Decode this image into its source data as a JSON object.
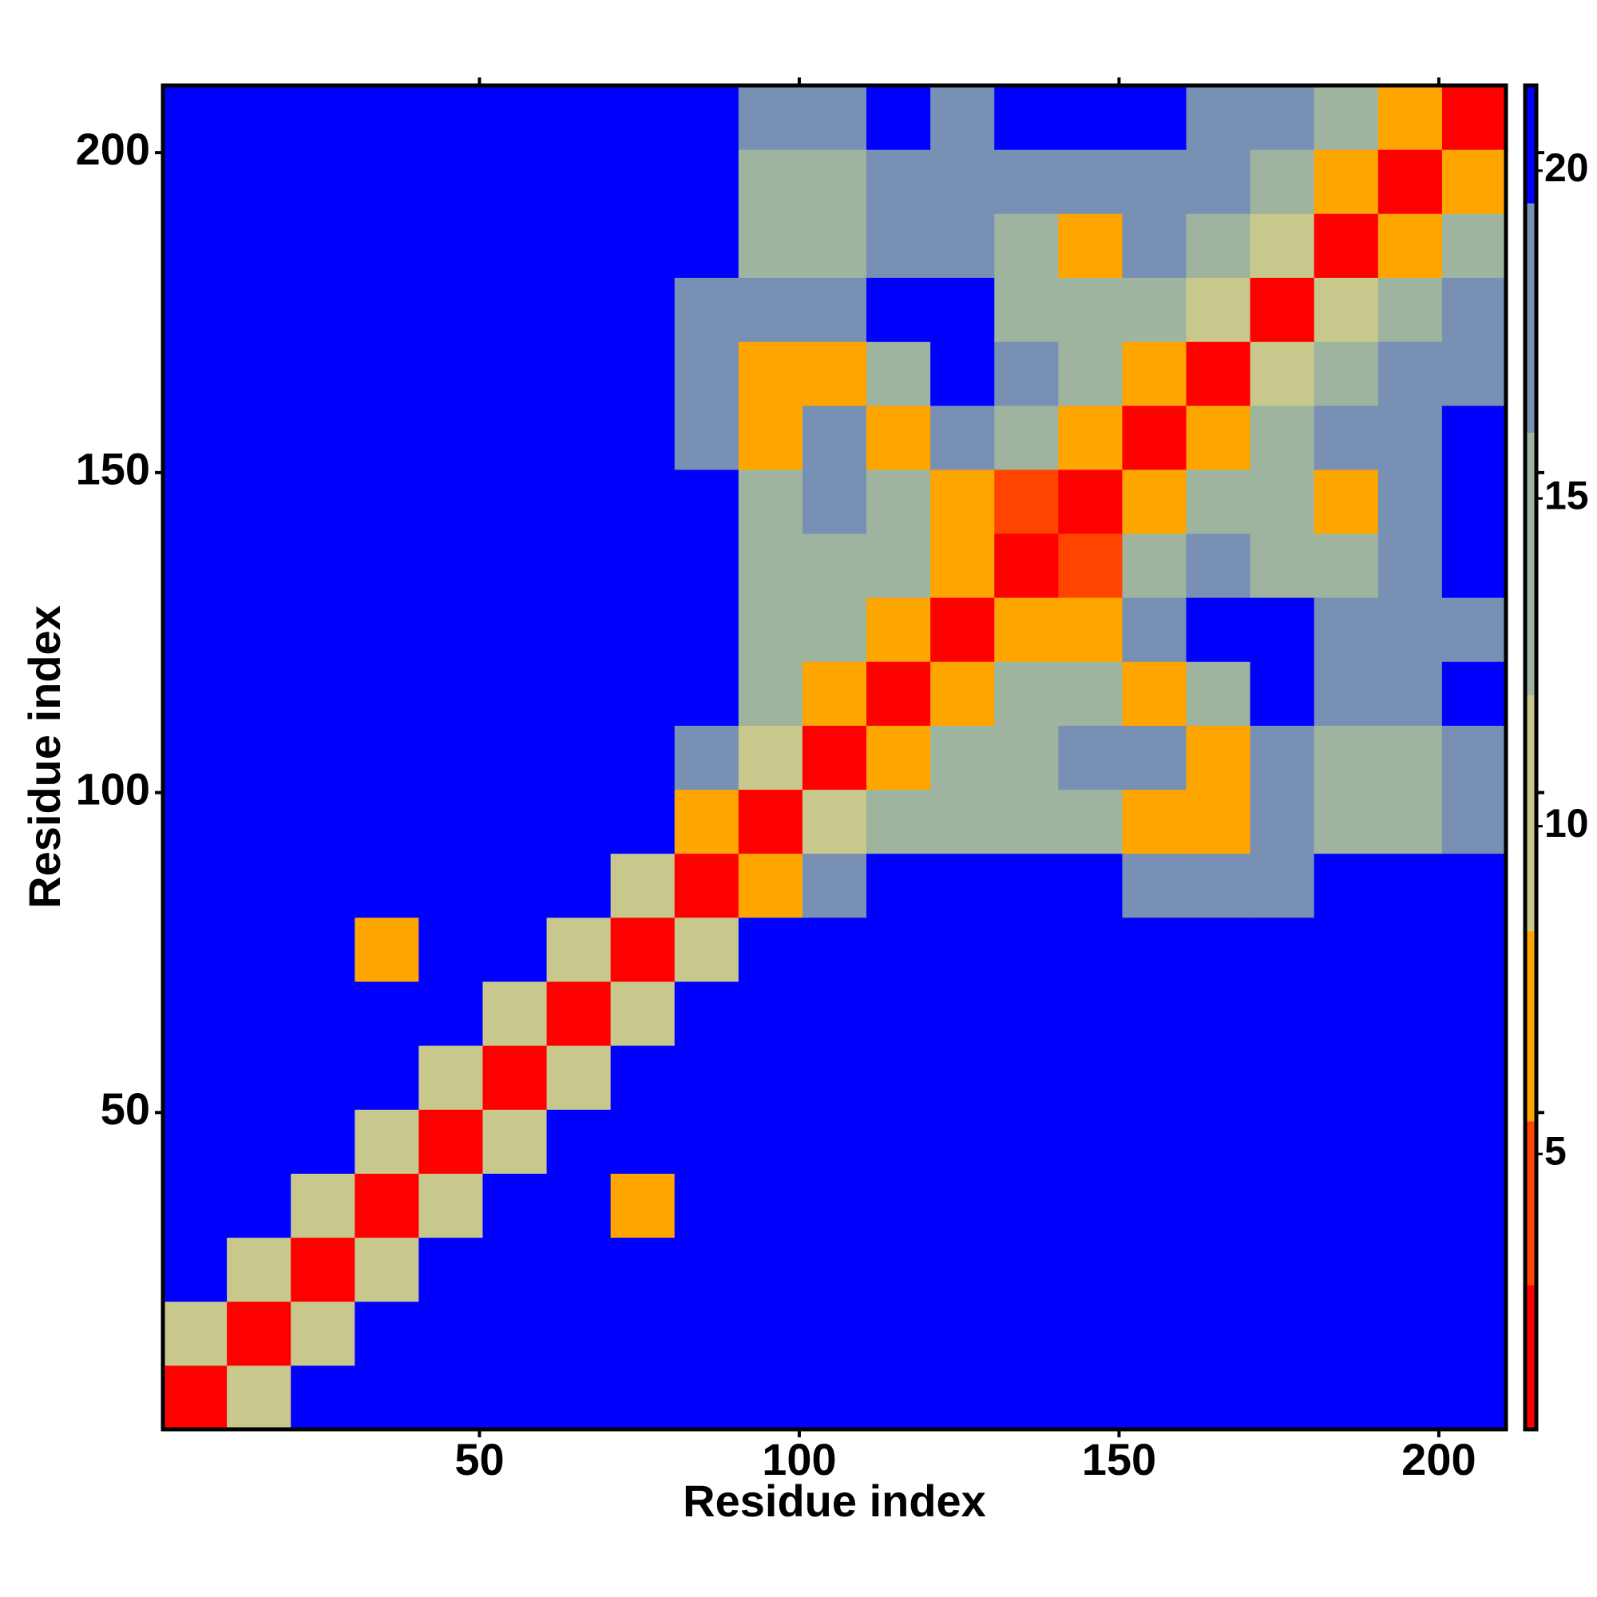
{
  "chart_data": {
    "type": "heatmap",
    "x_label": "Residue index",
    "y_label": "Residue index",
    "x": [
      5.5,
      15.5,
      25.5,
      35.5,
      45.5,
      55.5,
      65.5,
      75.5,
      85.5,
      95.5,
      105.5,
      115.5,
      125.5,
      135.5,
      145.5,
      155.5,
      165.5,
      175.5,
      185.5,
      195.5,
      205.5
    ],
    "y": [
      5.5,
      15.5,
      25.5,
      35.5,
      45.5,
      55.5,
      65.5,
      75.5,
      85.5,
      95.5,
      105.5,
      115.5,
      125.5,
      135.5,
      145.5,
      155.5,
      165.5,
      175.5,
      185.5,
      195.5,
      205.5
    ],
    "xlim": [
      0.5,
      210.5
    ],
    "ylim": [
      0.5,
      210.5
    ],
    "xticks": [
      50,
      100,
      150,
      200
    ],
    "yticks": [
      50,
      100,
      150,
      200
    ],
    "values": [
      [
        2.5,
        11,
        21,
        21,
        21,
        21,
        21,
        21,
        21,
        21,
        21,
        21,
        21,
        21,
        21,
        21,
        21,
        21,
        21,
        21,
        21
      ],
      [
        11,
        2.5,
        11,
        21,
        21,
        21,
        21,
        21,
        21,
        21,
        21,
        21,
        21,
        21,
        21,
        21,
        21,
        21,
        21,
        21,
        21
      ],
      [
        21,
        11,
        2.5,
        11,
        21,
        21,
        21,
        21,
        21,
        21,
        21,
        21,
        21,
        21,
        21,
        21,
        21,
        21,
        21,
        21,
        21
      ],
      [
        21,
        21,
        11,
        2.5,
        10,
        21,
        21,
        6,
        21,
        21,
        21,
        21,
        21,
        21,
        21,
        21,
        21,
        21,
        21,
        21,
        21
      ],
      [
        21,
        21,
        21,
        10,
        2.5,
        10,
        21,
        21,
        21,
        21,
        21,
        21,
        21,
        21,
        21,
        21,
        21,
        21,
        21,
        21,
        21
      ],
      [
        21,
        21,
        21,
        21,
        10,
        2.5,
        10,
        21,
        21,
        21,
        21,
        21,
        21,
        21,
        21,
        21,
        21,
        21,
        21,
        21,
        21
      ],
      [
        21,
        21,
        21,
        21,
        21,
        10,
        2.5,
        11,
        21,
        21,
        21,
        21,
        21,
        21,
        21,
        21,
        21,
        21,
        21,
        21,
        21
      ],
      [
        21,
        21,
        21,
        6,
        21,
        21,
        11,
        2.5,
        11,
        21,
        21,
        21,
        21,
        21,
        21,
        21,
        21,
        21,
        21,
        21,
        21
      ],
      [
        21,
        21,
        21,
        21,
        21,
        21,
        21,
        11,
        2.5,
        8,
        16,
        21,
        21,
        21,
        21,
        16,
        16,
        16,
        21,
        21,
        21
      ],
      [
        21,
        21,
        21,
        21,
        21,
        21,
        21,
        21,
        8,
        2.5,
        10,
        15,
        15,
        15,
        15,
        8,
        7,
        16,
        15,
        15,
        16
      ],
      [
        21,
        21,
        21,
        21,
        21,
        21,
        21,
        21,
        16,
        10,
        2.5,
        8,
        15,
        15,
        16,
        16,
        7,
        16,
        15,
        15,
        16
      ],
      [
        21,
        21,
        21,
        21,
        21,
        21,
        21,
        21,
        21,
        15,
        8,
        2.5,
        8,
        15,
        15,
        8,
        15,
        21,
        16,
        16,
        21
      ],
      [
        21,
        21,
        21,
        21,
        21,
        21,
        21,
        21,
        21,
        15,
        15,
        8,
        2.5,
        7,
        8,
        16,
        21,
        21,
        17,
        17,
        17
      ],
      [
        21,
        21,
        21,
        21,
        21,
        21,
        21,
        21,
        21,
        15,
        15,
        15,
        7,
        2.5,
        5,
        15,
        16,
        15,
        15,
        16,
        21
      ],
      [
        21,
        21,
        21,
        21,
        21,
        21,
        21,
        21,
        21,
        15,
        16,
        15,
        8,
        5,
        2.5,
        8,
        15,
        15,
        8,
        16,
        21
      ],
      [
        21,
        21,
        21,
        21,
        21,
        21,
        21,
        21,
        16,
        8,
        16,
        8,
        16,
        15,
        8,
        2.5,
        6,
        15,
        16,
        16,
        21
      ],
      [
        21,
        21,
        21,
        21,
        21,
        21,
        21,
        21,
        16,
        7,
        7,
        15,
        21,
        16,
        15,
        6,
        2.5,
        9,
        15,
        16,
        16
      ],
      [
        21,
        21,
        21,
        21,
        21,
        21,
        21,
        21,
        16,
        16,
        16,
        21,
        21,
        15,
        15,
        15,
        9,
        2.5,
        9,
        15,
        16
      ],
      [
        21,
        21,
        21,
        21,
        21,
        21,
        21,
        21,
        21,
        15,
        15,
        16,
        17,
        15,
        8,
        16,
        15,
        9,
        2.5,
        8,
        15
      ],
      [
        21,
        21,
        21,
        21,
        21,
        21,
        21,
        21,
        21,
        15,
        15,
        16,
        17,
        16,
        16,
        16,
        16,
        15,
        8,
        2.5,
        8
      ],
      [
        21,
        21,
        21,
        21,
        21,
        21,
        21,
        21,
        21,
        16,
        16,
        21,
        17,
        21,
        21,
        21,
        16,
        16,
        15,
        8,
        2.5
      ]
    ],
    "colorbar": {
      "lim": [
        0.8,
        21.3
      ],
      "ticks": [
        5,
        10,
        15,
        20
      ],
      "levels": [
        0.8,
        3,
        5.5,
        8.4,
        12,
        16,
        19.5,
        21.3
      ],
      "colors": [
        "#ff0000",
        "#ff4500",
        "#ffa500",
        "#c8c88c",
        "#9eb49e",
        "#7890b4",
        "#0000ff"
      ]
    }
  }
}
